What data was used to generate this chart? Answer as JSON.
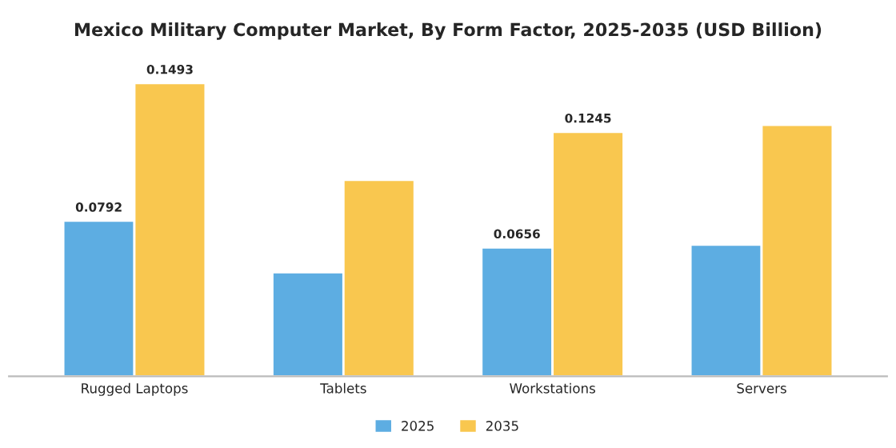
{
  "chart_data": {
    "type": "bar",
    "title": "Mexico Military Computer Market, By Form Factor, 2025-2035 (USD Billion)",
    "categories": [
      "Rugged Laptops",
      "Tablets",
      "Workstations",
      "Servers"
    ],
    "series": [
      {
        "name": "2025",
        "color": "#5dade2",
        "values": [
          0.0792,
          0.053,
          0.0656,
          0.067
        ],
        "value_labels": [
          "0.0792",
          null,
          "0.0656",
          null
        ]
      },
      {
        "name": "2035",
        "color": "#f9c74f",
        "values": [
          0.1493,
          0.1,
          0.1245,
          0.128
        ],
        "value_labels": [
          "0.1493",
          null,
          "0.1245",
          null
        ]
      }
    ],
    "legend": "bottom",
    "grid": false
  }
}
